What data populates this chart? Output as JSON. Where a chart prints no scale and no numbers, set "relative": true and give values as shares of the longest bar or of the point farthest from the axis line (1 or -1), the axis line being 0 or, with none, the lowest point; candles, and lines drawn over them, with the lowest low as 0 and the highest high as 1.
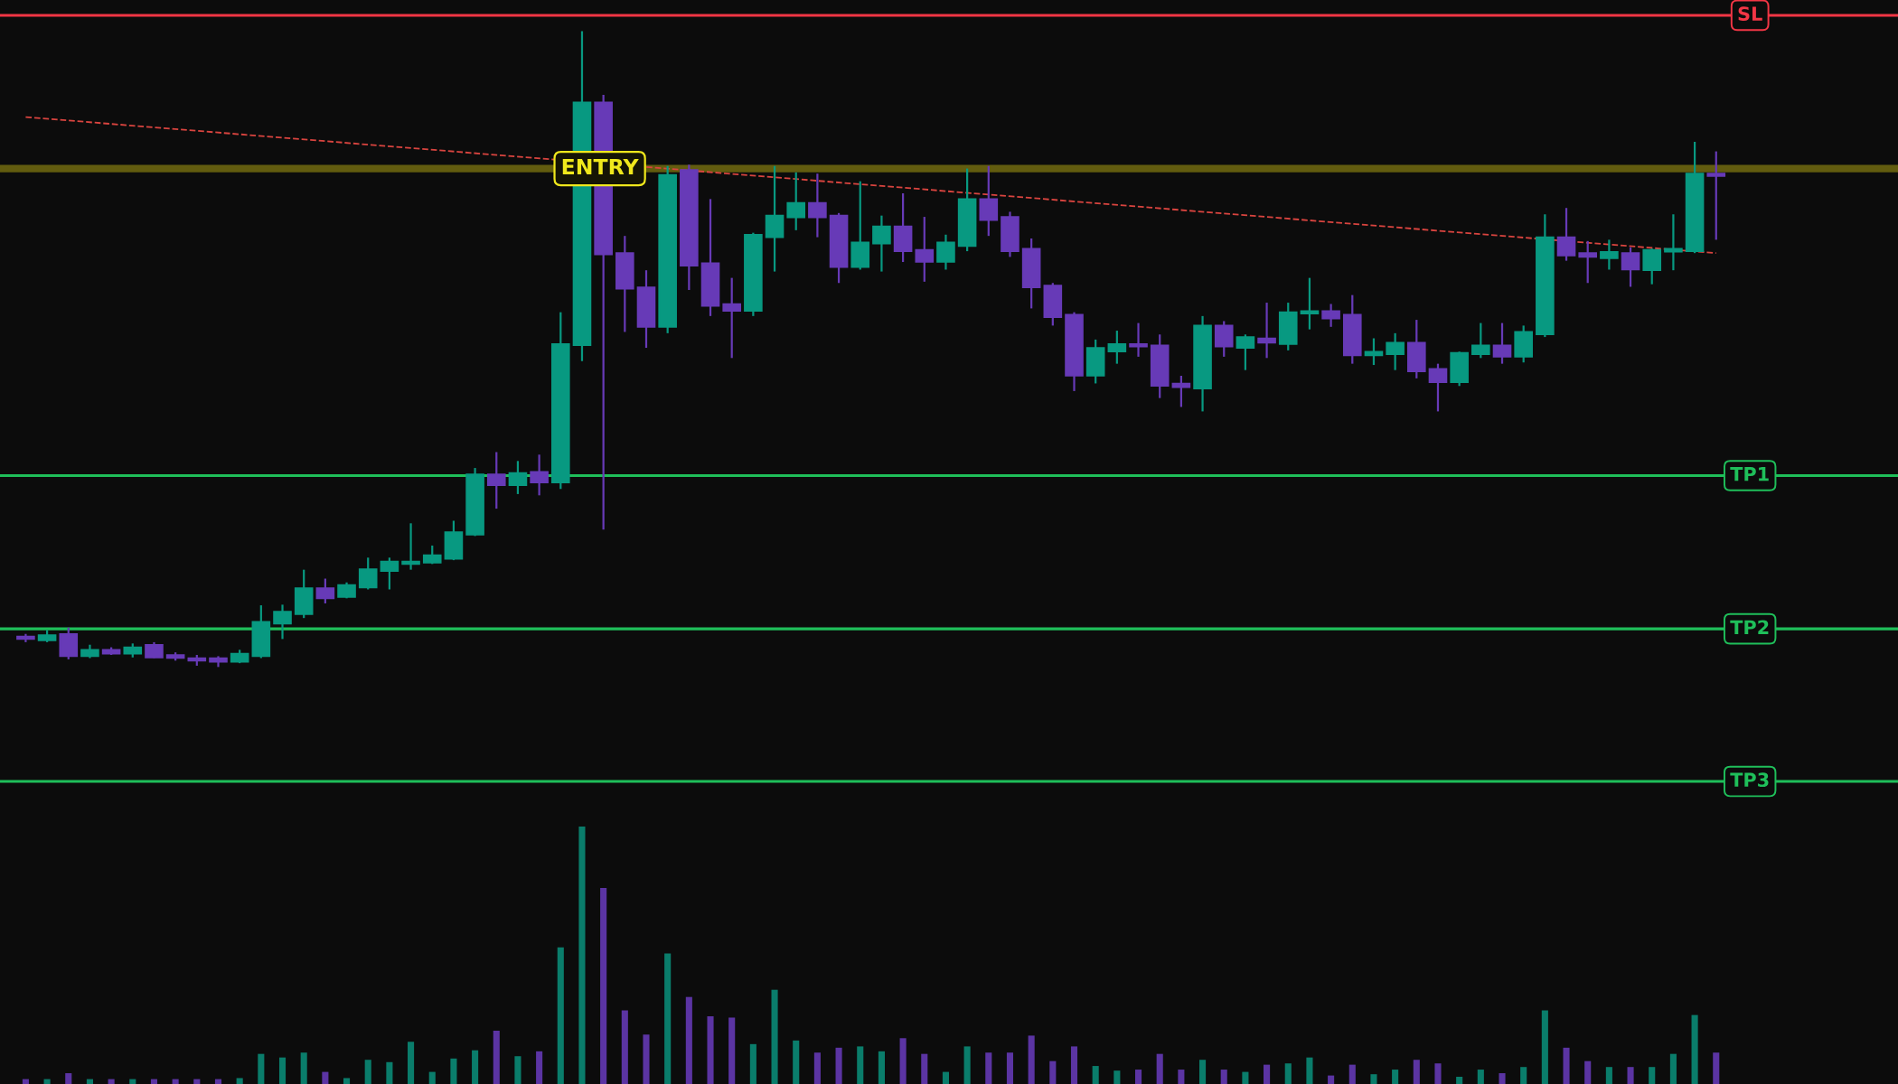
{
  "chart_data": [
    {
      "type": "candlestick",
      "relative": true,
      "categories": [
        null,
        null,
        null,
        null,
        null,
        null,
        null,
        null,
        null,
        null,
        null,
        null,
        null,
        null,
        null,
        null,
        null,
        null,
        null,
        null,
        null,
        null,
        null,
        null,
        null,
        null,
        null,
        null,
        null,
        null,
        null,
        null,
        null,
        null,
        null,
        null,
        null,
        null,
        null,
        null,
        null,
        null,
        null,
        null,
        null,
        null,
        null,
        null,
        null,
        null,
        null,
        null,
        null,
        null,
        null,
        null,
        null,
        null,
        null,
        null,
        null,
        null,
        null,
        null,
        null,
        null,
        null,
        null,
        null,
        null,
        null,
        null,
        null,
        null,
        null,
        null,
        null,
        null,
        null,
        null
      ],
      "colors": [
        "#673ab7",
        "#089981",
        "#673ab7",
        "#089981",
        "#673ab7",
        "#089981",
        "#673ab7",
        "#673ab7",
        "#673ab7",
        "#673ab7",
        "#089981",
        "#089981",
        "#089981",
        "#089981",
        "#673ab7",
        "#089981",
        "#089981",
        "#089981",
        "#089981",
        "#089981",
        "#089981",
        "#089981",
        "#673ab7",
        "#089981",
        "#673ab7",
        "#089981",
        "#089981",
        "#673ab7",
        "#673ab7",
        "#673ab7",
        "#089981",
        "#673ab7",
        "#673ab7",
        "#673ab7",
        "#089981",
        "#089981",
        "#089981",
        "#673ab7",
        "#673ab7",
        "#089981",
        "#089981",
        "#673ab7",
        "#673ab7",
        "#089981",
        "#089981",
        "#673ab7",
        "#673ab7",
        "#673ab7",
        "#673ab7",
        "#673ab7",
        "#089981",
        "#089981",
        "#673ab7",
        "#673ab7",
        "#673ab7",
        "#089981",
        "#673ab7",
        "#089981",
        "#673ab7",
        "#089981",
        "#089981",
        "#673ab7",
        "#673ab7",
        "#089981",
        "#089981",
        "#673ab7",
        "#673ab7",
        "#089981",
        "#089981",
        "#673ab7",
        "#089981",
        "#089981",
        "#673ab7",
        "#673ab7",
        "#089981",
        "#673ab7",
        "#089981",
        "#089981",
        "#089981",
        "#673ab7"
      ],
      "ohlc": [
        [
          0.048,
          0.052,
          0.039,
          0.044
        ],
        [
          0.042,
          0.058,
          0.039,
          0.05
        ],
        [
          0.052,
          0.062,
          0.012,
          0.017
        ],
        [
          0.017,
          0.035,
          0.014,
          0.027
        ],
        [
          0.027,
          0.031,
          0.019,
          0.021
        ],
        [
          0.021,
          0.037,
          0.015,
          0.031
        ],
        [
          0.035,
          0.039,
          0.014,
          0.015
        ],
        [
          0.019,
          0.023,
          0.01,
          0.014
        ],
        [
          0.014,
          0.019,
          0.002,
          0.01
        ],
        [
          0.014,
          0.017,
          0.0,
          0.008
        ],
        [
          0.008,
          0.027,
          0.006,
          0.021
        ],
        [
          0.017,
          0.097,
          0.014,
          0.071
        ],
        [
          0.068,
          0.098,
          0.044,
          0.087
        ],
        [
          0.083,
          0.153,
          0.077,
          0.124
        ],
        [
          0.124,
          0.139,
          0.1,
          0.108
        ],
        [
          0.11,
          0.133,
          0.108,
          0.129
        ],
        [
          0.125,
          0.172,
          0.122,
          0.154
        ],
        [
          0.151,
          0.172,
          0.122,
          0.166
        ],
        [
          0.162,
          0.226,
          0.153,
          0.166
        ],
        [
          0.164,
          0.191,
          0.162,
          0.176
        ],
        [
          0.17,
          0.23,
          0.168,
          0.212
        ],
        [
          0.208,
          0.313,
          0.206,
          0.303
        ],
        [
          0.303,
          0.338,
          0.249,
          0.286
        ],
        [
          0.286,
          0.324,
          0.272,
          0.305
        ],
        [
          0.307,
          0.334,
          0.27,
          0.29
        ],
        [
          0.29,
          0.558,
          0.28,
          0.508
        ],
        [
          0.506,
          1.0,
          0.481,
          0.888
        ],
        [
          0.888,
          0.9,
          0.216,
          0.649
        ],
        [
          0.651,
          0.678,
          0.527,
          0.595
        ],
        [
          0.597,
          0.624,
          0.502,
          0.535
        ],
        [
          0.535,
          0.788,
          0.525,
          0.774
        ],
        [
          0.782,
          0.79,
          0.593,
          0.631
        ],
        [
          0.635,
          0.736,
          0.552,
          0.568
        ],
        [
          0.571,
          0.612,
          0.486,
          0.56
        ],
        [
          0.56,
          0.683,
          0.552,
          0.68
        ],
        [
          0.676,
          0.788,
          0.622,
          0.71
        ],
        [
          0.707,
          0.778,
          0.687,
          0.73
        ],
        [
          0.73,
          0.776,
          0.676,
          0.707
        ],
        [
          0.71,
          0.714,
          0.604,
          0.629
        ],
        [
          0.629,
          0.764,
          0.625,
          0.668
        ],
        [
          0.666,
          0.71,
          0.622,
          0.693
        ],
        [
          0.693,
          0.745,
          0.637,
          0.654
        ],
        [
          0.656,
          0.708,
          0.606,
          0.637
        ],
        [
          0.637,
          0.68,
          0.625,
          0.668
        ],
        [
          0.662,
          0.784,
          0.654,
          0.736
        ],
        [
          0.736,
          0.788,
          0.678,
          0.703
        ],
        [
          0.708,
          0.716,
          0.645,
          0.654
        ],
        [
          0.658,
          0.674,
          0.564,
          0.597
        ],
        [
          0.6,
          0.604,
          0.537,
          0.55
        ],
        [
          0.554,
          0.558,
          0.434,
          0.458
        ],
        [
          0.458,
          0.515,
          0.446,
          0.502
        ],
        [
          0.496,
          0.529,
          0.477,
          0.508
        ],
        [
          0.508,
          0.541,
          0.488,
          0.504
        ],
        [
          0.506,
          0.523,
          0.423,
          0.442
        ],
        [
          0.446,
          0.458,
          0.409,
          0.44
        ],
        [
          0.438,
          0.552,
          0.402,
          0.537
        ],
        [
          0.537,
          0.544,
          0.488,
          0.504
        ],
        [
          0.502,
          0.523,
          0.467,
          0.519
        ],
        [
          0.517,
          0.573,
          0.486,
          0.51
        ],
        [
          0.508,
          0.573,
          0.498,
          0.558
        ],
        [
          0.556,
          0.612,
          0.531,
          0.56
        ],
        [
          0.56,
          0.571,
          0.535,
          0.548
        ],
        [
          0.554,
          0.585,
          0.477,
          0.49
        ],
        [
          0.49,
          0.517,
          0.475,
          0.496
        ],
        [
          0.492,
          0.525,
          0.467,
          0.51
        ],
        [
          0.51,
          0.546,
          0.454,
          0.465
        ],
        [
          0.469,
          0.477,
          0.402,
          0.448
        ],
        [
          0.448,
          0.496,
          0.442,
          0.494
        ],
        [
          0.492,
          0.541,
          0.486,
          0.506
        ],
        [
          0.506,
          0.541,
          0.477,
          0.488
        ],
        [
          0.488,
          0.537,
          0.479,
          0.527
        ],
        [
          0.523,
          0.712,
          0.519,
          0.676
        ],
        [
          0.676,
          0.722,
          0.639,
          0.647
        ],
        [
          0.651,
          0.67,
          0.604,
          0.645
        ],
        [
          0.643,
          0.672,
          0.625,
          0.653
        ],
        [
          0.651,
          0.66,
          0.598,
          0.625
        ],
        [
          0.624,
          0.658,
          0.602,
          0.656
        ],
        [
          0.653,
          0.712,
          0.624,
          0.658
        ],
        [
          0.654,
          0.826,
          0.651,
          0.776
        ],
        [
          0.776,
          0.811,
          0.672,
          0.772
        ]
      ],
      "series": [
        {
          "type": "line",
          "values": [
            0.865,
            null,
            null,
            null,
            null,
            null,
            null,
            null,
            null,
            null,
            null,
            null,
            null,
            null,
            null,
            null,
            null,
            null,
            null,
            null,
            null,
            null,
            null,
            null,
            null,
            null,
            null,
            null,
            null,
            null,
            null,
            null,
            null,
            null,
            null,
            null,
            null,
            null,
            null,
            null,
            null,
            null,
            null,
            null,
            null,
            null,
            null,
            null,
            null,
            null,
            null,
            null,
            null,
            null,
            null,
            null,
            null,
            null,
            null,
            null,
            null,
            null,
            null,
            null,
            null,
            null,
            null,
            null,
            null,
            null,
            null,
            null,
            null,
            null,
            null,
            null,
            null,
            null,
            null,
            0.651
          ],
          "color": "#d9443f",
          "line_style": "dashed"
        }
      ],
      "ref_lines": [
        {
          "axis": "y",
          "value": 1.025,
          "label": "SL",
          "color": "#f23645"
        },
        {
          "axis": "y",
          "value": 0.784,
          "label": "ENTRY",
          "color": "#6b6510"
        },
        {
          "axis": "y",
          "value": 0.301,
          "label": "TP1",
          "color": "#1fbf5a"
        },
        {
          "axis": "y",
          "value": 0.06,
          "label": "TP2",
          "color": "#1fbf5a"
        },
        {
          "axis": "y",
          "value": -0.18,
          "label": "TP3",
          "color": "#1fbf5a"
        }
      ],
      "grid": false,
      "legend": false,
      "tick_labels": false
    },
    {
      "type": "bar",
      "relative": true,
      "categories": [
        null,
        null,
        null,
        null,
        null,
        null,
        null,
        null,
        null,
        null,
        null,
        null,
        null,
        null,
        null,
        null,
        null,
        null,
        null,
        null,
        null,
        null,
        null,
        null,
        null,
        null,
        null,
        null,
        null,
        null,
        null,
        null,
        null,
        null,
        null,
        null,
        null,
        null,
        null,
        null,
        null,
        null,
        null,
        null,
        null,
        null,
        null,
        null,
        null,
        null,
        null,
        null,
        null,
        null,
        null,
        null,
        null,
        null,
        null,
        null,
        null,
        null,
        null,
        null,
        null,
        null,
        null,
        null,
        null,
        null,
        null,
        null,
        null,
        null,
        null,
        null,
        null,
        null,
        null,
        null
      ],
      "values": [
        0.019,
        0.019,
        0.042,
        0.019,
        0.019,
        0.019,
        0.019,
        0.019,
        0.019,
        0.019,
        0.023,
        0.117,
        0.103,
        0.122,
        0.047,
        0.023,
        0.094,
        0.085,
        0.164,
        0.047,
        0.099,
        0.131,
        0.207,
        0.108,
        0.127,
        0.531,
        1.0,
        0.761,
        0.286,
        0.192,
        0.507,
        0.338,
        0.263,
        0.258,
        0.155,
        0.366,
        0.169,
        0.122,
        0.141,
        0.146,
        0.127,
        0.178,
        0.117,
        0.047,
        0.146,
        0.122,
        0.122,
        0.188,
        0.089,
        0.146,
        0.07,
        0.052,
        0.056,
        0.117,
        0.056,
        0.094,
        0.056,
        0.047,
        0.075,
        0.08,
        0.103,
        0.033,
        0.075,
        0.038,
        0.056,
        0.094,
        0.08,
        0.028,
        0.056,
        0.042,
        0.066,
        0.286,
        0.141,
        0.089,
        0.066,
        0.066,
        0.066,
        0.117,
        0.268,
        0.122
      ],
      "colors": [
        "#5b34a3",
        "#0a7d6b",
        "#5b34a3",
        "#0a7d6b",
        "#5b34a3",
        "#0a7d6b",
        "#5b34a3",
        "#5b34a3",
        "#5b34a3",
        "#5b34a3",
        "#0a7d6b",
        "#0a7d6b",
        "#0a7d6b",
        "#0a7d6b",
        "#5b34a3",
        "#0a7d6b",
        "#0a7d6b",
        "#0a7d6b",
        "#0a7d6b",
        "#0a7d6b",
        "#0a7d6b",
        "#0a7d6b",
        "#5b34a3",
        "#0a7d6b",
        "#5b34a3",
        "#0a7d6b",
        "#0a7d6b",
        "#5b34a3",
        "#5b34a3",
        "#5b34a3",
        "#0a7d6b",
        "#5b34a3",
        "#5b34a3",
        "#5b34a3",
        "#0a7d6b",
        "#0a7d6b",
        "#0a7d6b",
        "#5b34a3",
        "#5b34a3",
        "#0a7d6b",
        "#0a7d6b",
        "#5b34a3",
        "#5b34a3",
        "#0a7d6b",
        "#0a7d6b",
        "#5b34a3",
        "#5b34a3",
        "#5b34a3",
        "#5b34a3",
        "#5b34a3",
        "#0a7d6b",
        "#0a7d6b",
        "#5b34a3",
        "#5b34a3",
        "#5b34a3",
        "#0a7d6b",
        "#5b34a3",
        "#0a7d6b",
        "#5b34a3",
        "#0a7d6b",
        "#0a7d6b",
        "#5b34a3",
        "#5b34a3",
        "#0a7d6b",
        "#0a7d6b",
        "#5b34a3",
        "#5b34a3",
        "#0a7d6b",
        "#0a7d6b",
        "#5b34a3",
        "#0a7d6b",
        "#0a7d6b",
        "#5b34a3",
        "#5b34a3",
        "#0a7d6b",
        "#5b34a3",
        "#0a7d6b",
        "#0a7d6b",
        "#0a7d6b",
        "#5b34a3"
      ],
      "grid": false,
      "legend": false,
      "tick_labels": false
    }
  ]
}
